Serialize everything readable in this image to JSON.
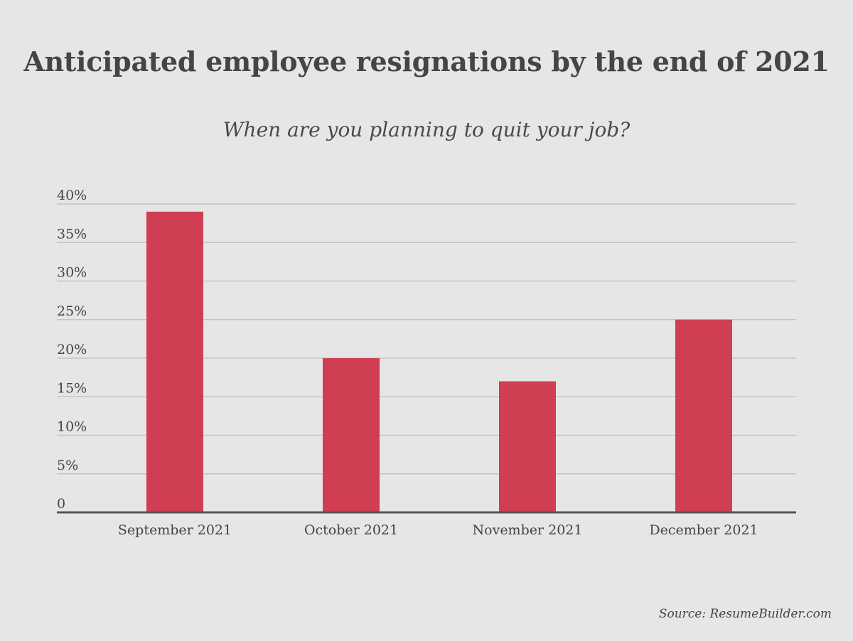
{
  "header": {
    "title": "Anticipated employee resignations by the end of 2021",
    "subtitle": "When are you planning to quit your job?"
  },
  "footer": {
    "source": "Source: ResumeBuilder.com"
  },
  "colors": {
    "bar": "#cf3e53",
    "grid": "#c4c4c4",
    "axis": "#555555",
    "text": "#444444",
    "background": "#e6e6e6"
  },
  "chart_data": {
    "type": "bar",
    "title": "Anticipated employee resignations by the end of 2021",
    "subtitle": "When are you planning to quit your job?",
    "categories": [
      "September 2021",
      "October 2021",
      "November 2021",
      "December 2021"
    ],
    "values": [
      39,
      20,
      17,
      25
    ],
    "unit": "%",
    "ylim": [
      0,
      40
    ],
    "yticks": [
      0,
      5,
      10,
      15,
      20,
      25,
      30,
      35,
      40
    ],
    "ytick_labels": [
      "0",
      "5%",
      "10%",
      "15%",
      "20%",
      "25%",
      "30%",
      "35%",
      "40%"
    ],
    "grid": true,
    "legend": "none"
  }
}
